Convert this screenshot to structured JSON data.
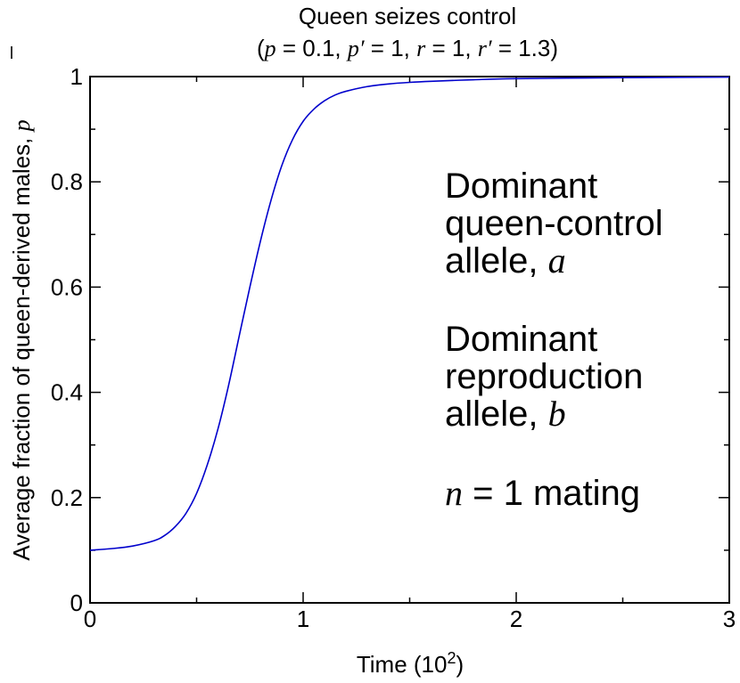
{
  "chart_data": {
    "type": "line",
    "title": "Queen seizes control",
    "subtitle_parts": {
      "open": "(",
      "p": "p",
      "p_eq": " = 0.1, ",
      "pp": "p′",
      "pp_eq": " = 1, ",
      "r": "r",
      "r_eq": " = 1, ",
      "rp": "r′",
      "rp_eq": " = 1.3)"
    },
    "xlabel": "Time (10",
    "xlabel_sup": "2",
    "xlabel_close": ")",
    "ylabel": "Average fraction of queen-derived males, ",
    "ylabel_symbol": "p",
    "xlim": [
      0,
      3
    ],
    "ylim": [
      0,
      1
    ],
    "x_ticks": [
      0,
      1,
      2,
      3
    ],
    "x_tick_labels": [
      "0",
      "1",
      "2",
      "3"
    ],
    "y_ticks": [
      0,
      0.2,
      0.4,
      0.6,
      0.8,
      1
    ],
    "y_tick_labels": [
      "0",
      "0.2",
      "0.4",
      "0.6",
      "0.8",
      "1"
    ],
    "grid": false,
    "series": [
      {
        "color": "#0000cc",
        "x": [
          0,
          0.1,
          0.2,
          0.3,
          0.35,
          0.4,
          0.45,
          0.5,
          0.55,
          0.6,
          0.65,
          0.7,
          0.75,
          0.8,
          0.85,
          0.9,
          0.95,
          1.0,
          1.05,
          1.1,
          1.15,
          1.2,
          1.3,
          1.4,
          1.5,
          1.6,
          1.8,
          2.0,
          2.5,
          3.0
        ],
        "y": [
          0.1,
          0.103,
          0.108,
          0.118,
          0.128,
          0.145,
          0.17,
          0.208,
          0.262,
          0.33,
          0.413,
          0.507,
          0.6,
          0.688,
          0.766,
          0.831,
          0.88,
          0.915,
          0.938,
          0.954,
          0.965,
          0.972,
          0.981,
          0.986,
          0.989,
          0.991,
          0.994,
          0.996,
          0.998,
          0.999
        ]
      }
    ],
    "annotations": {
      "line1": "Dominant",
      "line2": "queen-control",
      "line3_text": "allele, ",
      "line3_sym": "a",
      "line4": "Dominant",
      "line5": "reproduction",
      "line6_text": "allele, ",
      "line6_sym": "b",
      "line7_sym": "n",
      "line7_text": " = 1 mating"
    }
  }
}
